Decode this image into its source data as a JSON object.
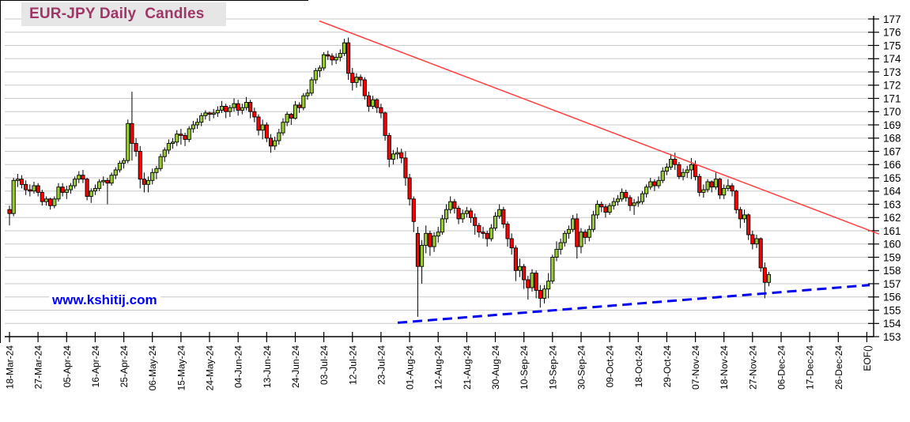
{
  "title": "EUR-JPY Daily  Candles",
  "watermark": "www.kshitij.com",
  "chart_data": {
    "type": "candlestick",
    "title": "EUR-JPY Daily  Candles",
    "instrument": "EUR-JPY",
    "timeframe": "Daily",
    "legend_position": "none",
    "grid": "horizontal",
    "y_axis": {
      "side": "right",
      "min": 153,
      "max": 177,
      "step": 1
    },
    "x_axis": {
      "candles_per_tick": 7,
      "tick_labels": [
        "18-Mar-24",
        "27-Mar-24",
        "05-Apr-24",
        "16-Apr-24",
        "25-Apr-24",
        "06-May-24",
        "15-May-24",
        "24-May-24",
        "04-Jun-24",
        "13-Jun-24",
        "24-Jun-24",
        "03-Jul-24",
        "12-Jul-24",
        "23-Jul-24",
        "01-Aug-24",
        "12-Aug-24",
        "21-Aug-24",
        "30-Aug-24",
        "10-Sep-24",
        "19-Sep-24",
        "30-Sep-24",
        "09-Oct-24",
        "18-Oct-24",
        "29-Oct-24",
        "07-Nov-24",
        "18-Nov-24",
        "27-Nov-24",
        "06-Dec-24",
        "17-Dec-24",
        "26-Dec-24",
        "EOF()"
      ]
    },
    "colors": {
      "up_candle": "#99CC33",
      "down_candle": "#FF0000",
      "candle_outline": "#000000",
      "grid_line": "#C8C8C8",
      "axis_line": "#000000",
      "resistance_line": "#FF4040",
      "support_line": "#0000EE",
      "title_color": "#9E3668",
      "title_bg": "#E6E6E6",
      "watermark_color": "#0000FF"
    },
    "trendlines": [
      {
        "name": "descending-resistance",
        "style": "solid",
        "color_key": "resistance_line",
        "start": {
          "candle_index": 75.9,
          "price": 176.85
        },
        "end": {
          "candle_index": 213.0,
          "price": 160.75
        }
      },
      {
        "name": "ascending-support",
        "style": "dashed",
        "color_key": "support_line",
        "start": {
          "candle_index": 95.1,
          "price": 154.05
        },
        "end": {
          "candle_index": 210.7,
          "price": 156.9
        }
      }
    ],
    "candles_ohlc": [
      [
        162.6,
        162.9,
        161.4,
        162.3
      ],
      [
        162.3,
        165.0,
        162.1,
        164.8
      ],
      [
        164.8,
        165.3,
        164.3,
        164.9
      ],
      [
        164.9,
        165.2,
        164.2,
        164.5
      ],
      [
        164.5,
        164.8,
        163.7,
        164.1
      ],
      [
        164.1,
        164.5,
        163.6,
        164.0
      ],
      [
        164.0,
        164.7,
        163.8,
        164.4
      ],
      [
        164.4,
        164.6,
        163.6,
        163.9
      ],
      [
        163.9,
        164.1,
        162.9,
        163.2
      ],
      [
        163.2,
        163.6,
        162.9,
        163.4
      ],
      [
        163.4,
        163.5,
        162.6,
        162.9
      ],
      [
        162.9,
        163.6,
        162.7,
        163.4
      ],
      [
        163.4,
        164.6,
        163.2,
        164.3
      ],
      [
        164.3,
        164.6,
        163.6,
        163.9
      ],
      [
        163.9,
        164.4,
        163.4,
        164.1
      ],
      [
        164.1,
        164.6,
        163.8,
        164.4
      ],
      [
        164.4,
        165.1,
        164.2,
        164.9
      ],
      [
        164.9,
        165.5,
        164.6,
        165.2
      ],
      [
        165.2,
        165.6,
        164.6,
        164.9
      ],
      [
        164.9,
        165.0,
        163.3,
        163.6
      ],
      [
        163.6,
        164.2,
        163.1,
        164.0
      ],
      [
        164.0,
        164.5,
        163.7,
        164.2
      ],
      [
        164.2,
        164.9,
        164.0,
        164.7
      ],
      [
        164.7,
        165.1,
        164.4,
        164.8
      ],
      [
        164.8,
        165.0,
        163.0,
        164.6
      ],
      [
        164.6,
        165.4,
        164.4,
        165.2
      ],
      [
        165.2,
        165.8,
        164.9,
        165.6
      ],
      [
        165.6,
        166.3,
        165.4,
        166.1
      ],
      [
        166.1,
        166.5,
        165.7,
        166.3
      ],
      [
        166.3,
        169.4,
        166.1,
        169.1
      ],
      [
        169.1,
        171.5,
        166.3,
        167.6
      ],
      [
        167.6,
        168.0,
        166.6,
        167.0
      ],
      [
        167.0,
        167.4,
        164.2,
        164.9
      ],
      [
        164.9,
        165.4,
        163.9,
        164.5
      ],
      [
        164.5,
        165.1,
        163.9,
        164.8
      ],
      [
        164.8,
        165.7,
        164.5,
        165.4
      ],
      [
        165.4,
        165.9,
        164.9,
        165.7
      ],
      [
        165.7,
        166.8,
        165.5,
        166.6
      ],
      [
        166.6,
        167.3,
        166.2,
        167.1
      ],
      [
        167.1,
        167.9,
        166.8,
        167.6
      ],
      [
        167.6,
        168.0,
        167.2,
        167.7
      ],
      [
        167.7,
        168.6,
        167.4,
        168.3
      ],
      [
        168.3,
        168.7,
        167.5,
        168.2
      ],
      [
        168.2,
        168.4,
        167.4,
        167.9
      ],
      [
        167.9,
        168.9,
        167.7,
        168.7
      ],
      [
        168.7,
        169.3,
        168.4,
        169.0
      ],
      [
        169.0,
        169.5,
        168.7,
        169.2
      ],
      [
        169.2,
        169.9,
        168.9,
        169.7
      ],
      [
        169.7,
        170.1,
        169.4,
        169.9
      ],
      [
        169.9,
        170.0,
        169.3,
        169.8
      ],
      [
        169.8,
        170.2,
        169.5,
        169.9
      ],
      [
        169.9,
        170.4,
        169.6,
        170.1
      ],
      [
        170.1,
        170.8,
        169.9,
        170.4
      ],
      [
        170.4,
        170.6,
        169.5,
        170.0
      ],
      [
        170.0,
        170.5,
        169.6,
        170.3
      ],
      [
        170.3,
        171.0,
        170.0,
        170.6
      ],
      [
        170.6,
        170.9,
        169.7,
        170.1
      ],
      [
        170.1,
        170.6,
        169.8,
        170.3
      ],
      [
        170.3,
        171.1,
        170.1,
        170.7
      ],
      [
        170.7,
        170.9,
        169.5,
        170.0
      ],
      [
        170.0,
        170.3,
        169.2,
        169.6
      ],
      [
        169.6,
        169.8,
        168.2,
        168.6
      ],
      [
        168.6,
        169.4,
        167.9,
        169.0
      ],
      [
        169.0,
        169.2,
        167.7,
        168.0
      ],
      [
        168.0,
        168.3,
        166.9,
        167.4
      ],
      [
        167.4,
        168.1,
        167.1,
        167.8
      ],
      [
        167.8,
        168.7,
        167.5,
        168.4
      ],
      [
        168.4,
        169.5,
        168.2,
        169.2
      ],
      [
        169.2,
        170.0,
        168.9,
        169.8
      ],
      [
        169.8,
        169.9,
        169.0,
        169.5
      ],
      [
        169.5,
        170.8,
        169.4,
        170.5
      ],
      [
        170.5,
        170.7,
        169.9,
        170.3
      ],
      [
        170.3,
        171.4,
        170.1,
        171.2
      ],
      [
        171.2,
        171.7,
        170.9,
        171.4
      ],
      [
        171.4,
        172.6,
        171.2,
        172.4
      ],
      [
        172.4,
        173.3,
        172.1,
        173.1
      ],
      [
        173.1,
        173.5,
        172.6,
        173.3
      ],
      [
        173.3,
        174.5,
        173.1,
        174.3
      ],
      [
        174.3,
        174.6,
        173.9,
        174.2
      ],
      [
        174.2,
        174.4,
        173.5,
        173.9
      ],
      [
        173.9,
        174.4,
        173.6,
        174.1
      ],
      [
        174.1,
        174.7,
        173.8,
        174.4
      ],
      [
        174.4,
        175.5,
        174.2,
        175.2
      ],
      [
        175.2,
        175.6,
        172.4,
        172.9
      ],
      [
        172.9,
        173.3,
        171.6,
        172.2
      ],
      [
        172.2,
        172.9,
        171.8,
        172.6
      ],
      [
        172.6,
        172.8,
        171.9,
        172.4
      ],
      [
        172.4,
        172.6,
        170.9,
        171.2
      ],
      [
        171.2,
        171.5,
        170.0,
        170.4
      ],
      [
        170.4,
        171.2,
        170.2,
        170.9
      ],
      [
        170.9,
        171.0,
        169.9,
        170.3
      ],
      [
        170.3,
        170.6,
        169.5,
        169.9
      ],
      [
        169.9,
        170.0,
        167.8,
        168.2
      ],
      [
        168.2,
        168.4,
        165.8,
        166.4
      ],
      [
        166.4,
        167.1,
        166.0,
        166.8
      ],
      [
        166.8,
        167.3,
        166.4,
        166.9
      ],
      [
        166.9,
        167.2,
        166.1,
        166.5
      ],
      [
        166.5,
        167.0,
        164.4,
        165.0
      ],
      [
        165.0,
        165.3,
        162.9,
        163.4
      ],
      [
        163.4,
        163.6,
        160.9,
        161.7
      ],
      [
        160.8,
        161.3,
        154.5,
        158.3
      ],
      [
        158.3,
        160.3,
        157.0,
        159.9
      ],
      [
        159.9,
        161.4,
        159.3,
        160.8
      ],
      [
        160.8,
        161.0,
        159.1,
        159.8
      ],
      [
        159.8,
        160.9,
        159.4,
        160.6
      ],
      [
        160.6,
        161.3,
        160.1,
        160.9
      ],
      [
        160.9,
        162.2,
        160.7,
        161.9
      ],
      [
        161.9,
        163.0,
        161.6,
        162.6
      ],
      [
        162.6,
        163.6,
        162.3,
        163.2
      ],
      [
        163.2,
        163.4,
        162.3,
        162.7
      ],
      [
        162.7,
        162.9,
        161.5,
        161.9
      ],
      [
        161.9,
        162.6,
        161.6,
        162.3
      ],
      [
        162.3,
        162.8,
        162.0,
        162.5
      ],
      [
        162.5,
        162.7,
        161.6,
        162.0
      ],
      [
        162.0,
        162.3,
        160.7,
        161.4
      ],
      [
        161.4,
        161.6,
        160.5,
        160.9
      ],
      [
        160.9,
        161.3,
        160.4,
        160.8
      ],
      [
        160.8,
        161.0,
        159.8,
        160.4
      ],
      [
        160.4,
        161.5,
        160.2,
        161.2
      ],
      [
        161.2,
        162.4,
        161.0,
        162.1
      ],
      [
        162.1,
        163.0,
        161.9,
        162.6
      ],
      [
        162.6,
        162.8,
        161.2,
        161.5
      ],
      [
        161.5,
        161.7,
        159.8,
        160.4
      ],
      [
        160.4,
        160.8,
        159.2,
        159.7
      ],
      [
        159.7,
        159.9,
        157.2,
        158.0
      ],
      [
        158.0,
        158.9,
        157.5,
        158.3
      ],
      [
        158.3,
        158.5,
        156.6,
        157.3
      ],
      [
        157.3,
        157.6,
        155.8,
        156.7
      ],
      [
        156.7,
        158.1,
        156.4,
        157.8
      ],
      [
        157.8,
        158.0,
        155.9,
        156.5
      ],
      [
        156.5,
        156.9,
        155.2,
        155.9
      ],
      [
        155.9,
        156.9,
        155.5,
        156.6
      ],
      [
        156.6,
        157.8,
        155.9,
        157.2
      ],
      [
        157.2,
        159.2,
        157.0,
        159.0
      ],
      [
        159.0,
        160.2,
        158.7,
        159.6
      ],
      [
        159.6,
        160.4,
        159.2,
        160.1
      ],
      [
        160.1,
        161.0,
        159.8,
        160.8
      ],
      [
        160.8,
        161.4,
        160.4,
        161.1
      ],
      [
        161.1,
        162.2,
        160.9,
        161.9
      ],
      [
        161.9,
        162.3,
        158.9,
        159.8
      ],
      [
        159.8,
        161.2,
        159.3,
        160.9
      ],
      [
        160.9,
        161.1,
        160.0,
        160.5
      ],
      [
        160.5,
        161.4,
        160.2,
        161.1
      ],
      [
        161.1,
        162.5,
        160.9,
        162.2
      ],
      [
        162.2,
        163.3,
        161.9,
        163.0
      ],
      [
        163.0,
        163.2,
        162.4,
        162.8
      ],
      [
        162.8,
        163.0,
        162.0,
        162.4
      ],
      [
        162.4,
        163.1,
        162.2,
        162.9
      ],
      [
        162.9,
        163.5,
        162.6,
        163.2
      ],
      [
        163.2,
        163.7,
        162.9,
        163.4
      ],
      [
        163.4,
        164.2,
        163.2,
        163.9
      ],
      [
        163.9,
        164.1,
        163.2,
        163.5
      ],
      [
        163.5,
        163.7,
        162.5,
        162.9
      ],
      [
        162.9,
        163.4,
        162.2,
        163.1
      ],
      [
        163.1,
        163.6,
        162.8,
        163.2
      ],
      [
        163.2,
        164.0,
        163.0,
        163.8
      ],
      [
        163.8,
        164.5,
        163.5,
        164.3
      ],
      [
        164.3,
        165.0,
        164.1,
        164.7
      ],
      [
        164.7,
        164.9,
        164.0,
        164.4
      ],
      [
        164.4,
        165.1,
        164.2,
        164.8
      ],
      [
        164.8,
        165.8,
        164.6,
        165.5
      ],
      [
        165.5,
        166.1,
        165.2,
        165.8
      ],
      [
        165.8,
        166.8,
        165.6,
        166.4
      ],
      [
        166.4,
        166.9,
        165.6,
        166.0
      ],
      [
        166.0,
        166.2,
        164.9,
        165.1
      ],
      [
        165.1,
        165.7,
        164.8,
        165.4
      ],
      [
        165.4,
        165.9,
        165.0,
        165.6
      ],
      [
        165.6,
        166.5,
        164.9,
        166.0
      ],
      [
        166.0,
        166.3,
        164.8,
        165.1
      ],
      [
        165.1,
        165.3,
        163.6,
        163.9
      ],
      [
        163.9,
        164.5,
        163.5,
        164.1
      ],
      [
        164.1,
        164.9,
        163.9,
        164.7
      ],
      [
        164.7,
        164.8,
        163.9,
        164.3
      ],
      [
        164.3,
        165.4,
        164.1,
        164.9
      ],
      [
        164.9,
        165.0,
        163.4,
        163.7
      ],
      [
        163.7,
        164.5,
        163.4,
        164.2
      ],
      [
        164.2,
        164.9,
        164.0,
        164.4
      ],
      [
        164.4,
        164.6,
        163.6,
        164.0
      ],
      [
        164.0,
        164.1,
        162.3,
        162.6
      ],
      [
        162.6,
        162.8,
        161.2,
        161.9
      ],
      [
        161.9,
        162.6,
        161.6,
        162.2
      ],
      [
        162.2,
        162.3,
        160.3,
        160.7
      ],
      [
        160.7,
        161.0,
        159.6,
        160.0
      ],
      [
        160.0,
        160.7,
        159.7,
        160.4
      ],
      [
        160.4,
        160.5,
        157.9,
        158.2
      ],
      [
        158.2,
        158.6,
        155.9,
        157.1
      ],
      [
        157.1,
        157.9,
        156.8,
        157.7
      ]
    ]
  }
}
